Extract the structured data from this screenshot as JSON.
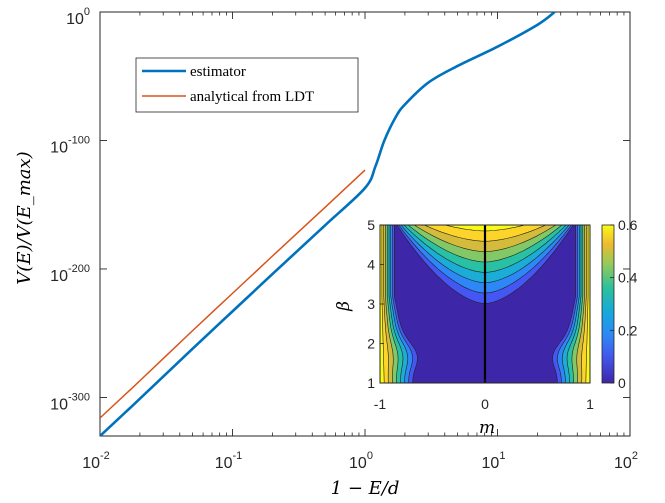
{
  "chart_data": [
    {
      "type": "line",
      "title": "",
      "xlabel": "1 − E/d",
      "ylabel": "V(E)/V(E_max)",
      "xscale": "log",
      "yscale": "log",
      "xlim": [
        0.01,
        100
      ],
      "ylim_exp": [
        -330,
        0
      ],
      "xticks": [
        {
          "base": "10",
          "exp": "-2"
        },
        {
          "base": "10",
          "exp": "-1"
        },
        {
          "base": "10",
          "exp": "0"
        },
        {
          "base": "10",
          "exp": "1"
        },
        {
          "base": "10",
          "exp": "2"
        }
      ],
      "yticks": [
        {
          "base": "10",
          "exp": "-300"
        },
        {
          "base": "10",
          "exp": "-200"
        },
        {
          "base": "10",
          "exp": "-100"
        },
        {
          "base": "10",
          "exp": "0"
        }
      ],
      "legend_position": "top-left",
      "series": [
        {
          "name": "estimator",
          "color": "#0072BD",
          "x": [
            0.01,
            0.02,
            0.05,
            0.1,
            0.2,
            0.5,
            1.0,
            1.2,
            1.4,
            1.7,
            2.0,
            3.0,
            5.0,
            10.0,
            20.0,
            27.0
          ],
          "log10_y": [
            -330,
            -301,
            -262,
            -233,
            -204,
            -166,
            -137,
            -120,
            -100,
            -82,
            -72,
            -55,
            -42,
            -27,
            -10,
            0
          ]
        },
        {
          "name": "analytical from LDT",
          "color": "#D95319",
          "x": [
            0.01,
            0.02,
            0.05,
            0.1,
            0.2,
            0.5,
            1.0
          ],
          "log10_y": [
            -316,
            -287,
            -248,
            -219,
            -190,
            -152,
            -123
          ]
        }
      ]
    },
    {
      "type": "heatmap",
      "title": "",
      "xlabel": "m",
      "ylabel": "β",
      "xlim": [
        -1,
        1
      ],
      "ylim": [
        1,
        5
      ],
      "xticks": [
        "-1",
        "0",
        "1"
      ],
      "yticks": [
        "1",
        "2",
        "3",
        "4",
        "5"
      ],
      "colorbar": {
        "min": 0,
        "max": 0.6,
        "ticks": [
          "0",
          "0.2",
          "0.4",
          "0.6"
        ]
      },
      "levels": [
        "#3e26a8",
        "#4457f4",
        "#2e87f7",
        "#1cadd6",
        "#28c1a3",
        "#83c867",
        "#d4bb3b",
        "#fdd52a",
        "#f9fb15"
      ],
      "vline_x": 0
    }
  ]
}
